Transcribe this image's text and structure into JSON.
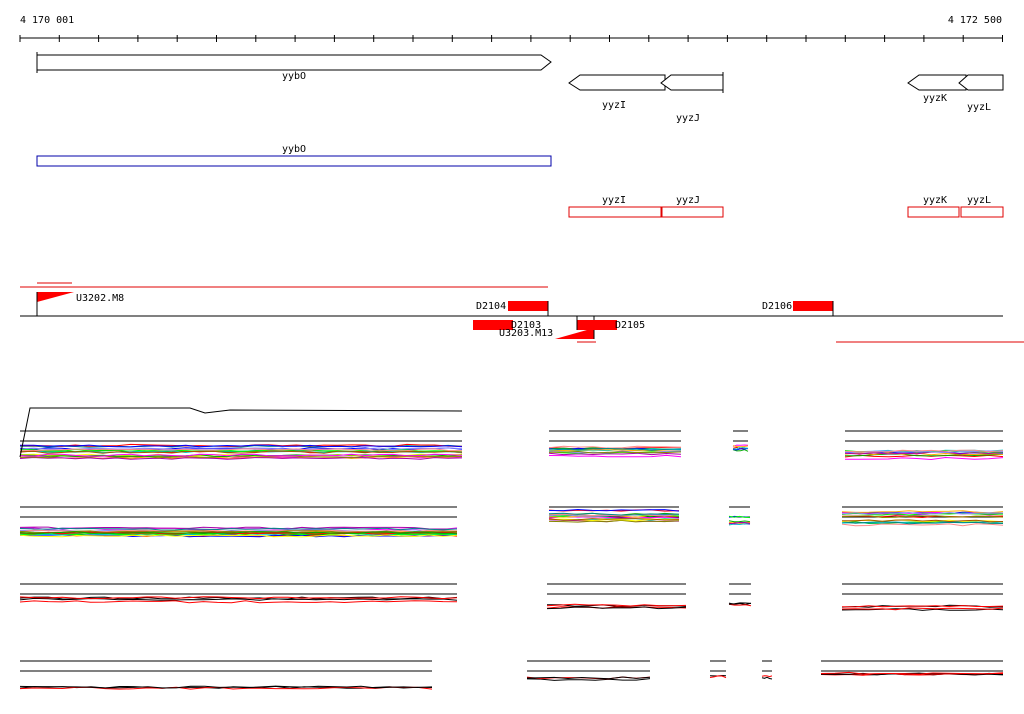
{
  "ruler": {
    "start_label": "4 170 001",
    "end_label": "4 172 500"
  },
  "genes": [
    {
      "label": "yybO",
      "strand": "+"
    },
    {
      "label": "yyzI",
      "strand": "-"
    },
    {
      "label": "yyzJ",
      "strand": "-"
    },
    {
      "label": "yyzK",
      "strand": "-"
    },
    {
      "label": "yyzL",
      "strand": "-"
    }
  ],
  "boxes_blue": [
    {
      "label": "yybO"
    }
  ],
  "boxes_red": [
    {
      "label": "yyzI"
    },
    {
      "label": "yyzJ"
    },
    {
      "label": "yyzK"
    },
    {
      "label": "yyzL"
    }
  ],
  "features": [
    {
      "label": "U3202.M8"
    },
    {
      "label": "D2104"
    },
    {
      "label": "D2103"
    },
    {
      "label": "U3203.M13"
    },
    {
      "label": "D2105"
    },
    {
      "label": "D2106"
    }
  ],
  "colors": {
    "gene_outline": "#000000",
    "blue_box": "#0000aa",
    "red": "#ff0000"
  }
}
